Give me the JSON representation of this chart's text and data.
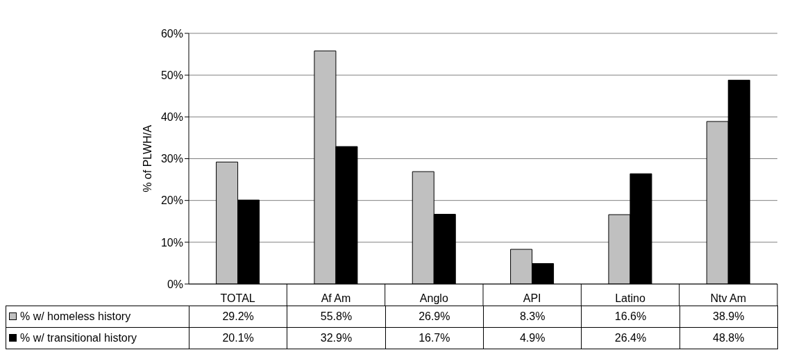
{
  "chart_data": {
    "type": "bar",
    "ylabel": "% of PLWH/A",
    "categories": [
      "TOTAL",
      "Af Am",
      "Anglo",
      "API",
      "Latino",
      "Ntv Am"
    ],
    "series": [
      {
        "name": "% w/ homeless history",
        "color": "#c0c0c0",
        "values": [
          29.2,
          55.8,
          26.9,
          8.3,
          16.6,
          38.9
        ],
        "value_labels": [
          "29.2%",
          "55.8%",
          "26.9%",
          "8.3%",
          "16.6%",
          "38.9%"
        ]
      },
      {
        "name": "% w/ transitional history",
        "color": "#000000",
        "values": [
          20.1,
          32.9,
          16.7,
          4.9,
          26.4,
          48.8
        ],
        "value_labels": [
          "20.1%",
          "32.9%",
          "16.7%",
          "4.9%",
          "26.4%",
          "48.8%"
        ]
      }
    ],
    "ylim": [
      0,
      60
    ],
    "yticks": [
      {
        "value": 0,
        "label": "0%"
      },
      {
        "value": 10,
        "label": "10%"
      },
      {
        "value": 20,
        "label": "20%"
      },
      {
        "value": 30,
        "label": "30%"
      },
      {
        "value": 40,
        "label": "40%"
      },
      {
        "value": 50,
        "label": "50%"
      },
      {
        "value": 60,
        "label": "60%"
      }
    ],
    "grid": "y",
    "legend": "bottom left"
  }
}
